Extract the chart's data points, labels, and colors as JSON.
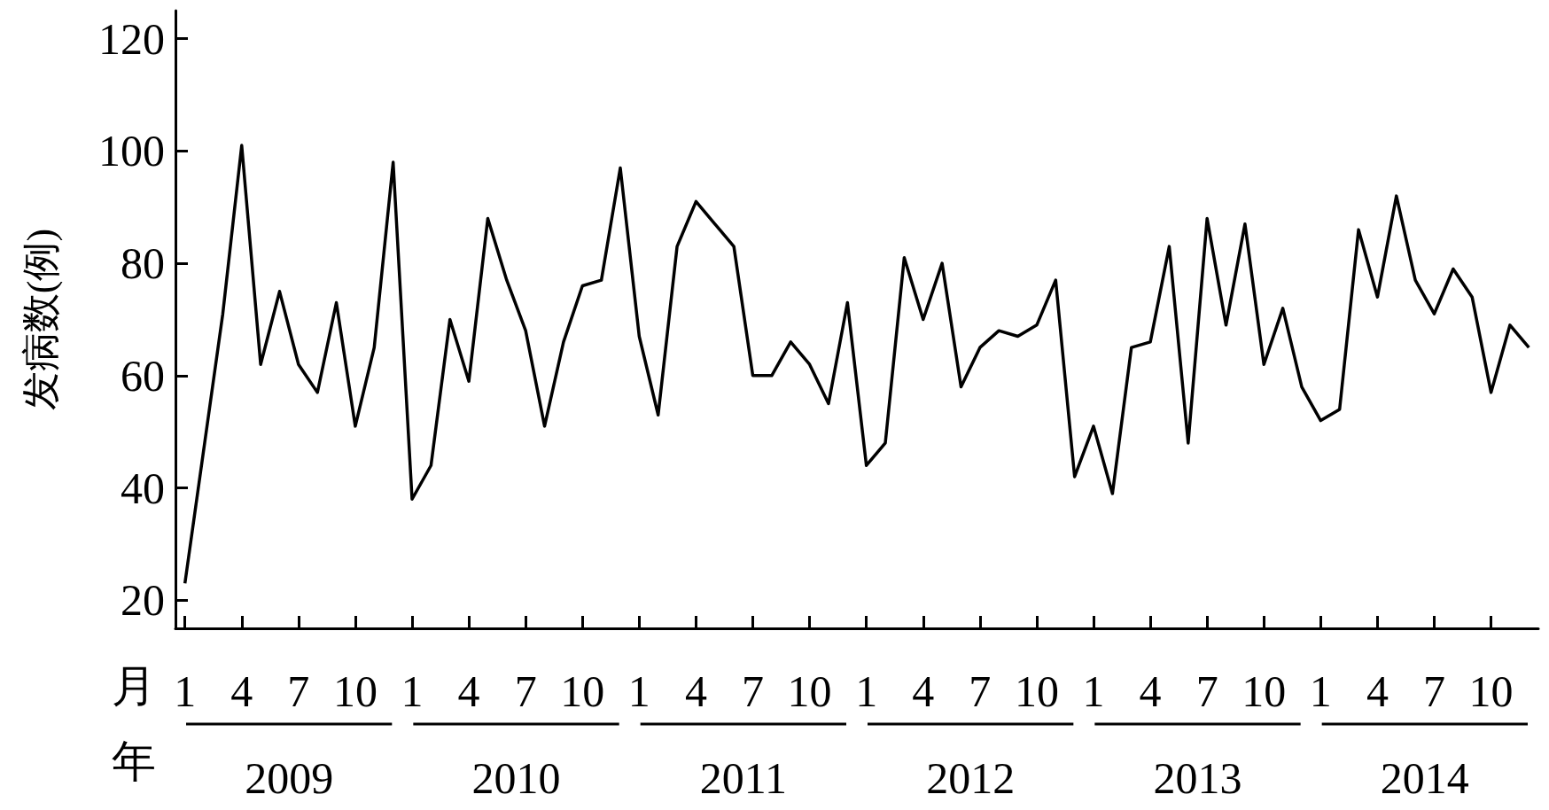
{
  "chart_data": {
    "type": "line",
    "ylabel": "发病数(例)",
    "xlabel": "月",
    "x2label": "年",
    "categories": [
      "1",
      null,
      null,
      "4",
      null,
      null,
      "7",
      null,
      null,
      "10",
      null,
      null,
      "1",
      null,
      null,
      "4",
      null,
      null,
      "7",
      null,
      null,
      "10",
      null,
      null,
      "1",
      null,
      null,
      "4",
      null,
      null,
      "7",
      null,
      null,
      "10",
      null,
      null,
      "1",
      null,
      null,
      "4",
      null,
      null,
      "7",
      null,
      null,
      "10",
      null,
      null,
      "1",
      null,
      null,
      "4",
      null,
      null,
      "7",
      null,
      null,
      "10",
      null,
      null,
      "1",
      null,
      null,
      "4",
      null,
      null,
      "7",
      null,
      null,
      "10",
      null,
      null
    ],
    "series": [
      {
        "color": "#000000",
        "values": [
          23,
          47,
          71,
          101,
          62,
          75,
          62,
          57,
          73,
          51,
          65,
          98,
          38,
          44,
          70,
          59,
          88,
          77,
          68,
          51,
          66,
          76,
          77,
          97,
          67,
          53,
          83,
          91,
          87,
          83,
          60,
          60,
          66,
          62,
          55,
          73,
          44,
          48,
          81,
          70,
          80,
          58,
          65,
          68,
          67,
          69,
          77,
          42,
          51,
          39,
          65,
          66,
          83,
          48,
          88,
          69,
          87,
          62,
          72,
          58,
          52,
          54,
          86,
          74,
          92,
          77,
          71,
          79,
          74,
          57,
          69,
          65
        ]
      }
    ],
    "annotations": [
      "2009",
      "2010",
      "2011",
      "2012",
      "2013",
      "2014"
    ],
    "ylim": [
      15,
      125
    ],
    "yticks": [
      20,
      40,
      60,
      80,
      100,
      120
    ],
    "grid": false,
    "marker": "none",
    "line_style": "solid"
  }
}
